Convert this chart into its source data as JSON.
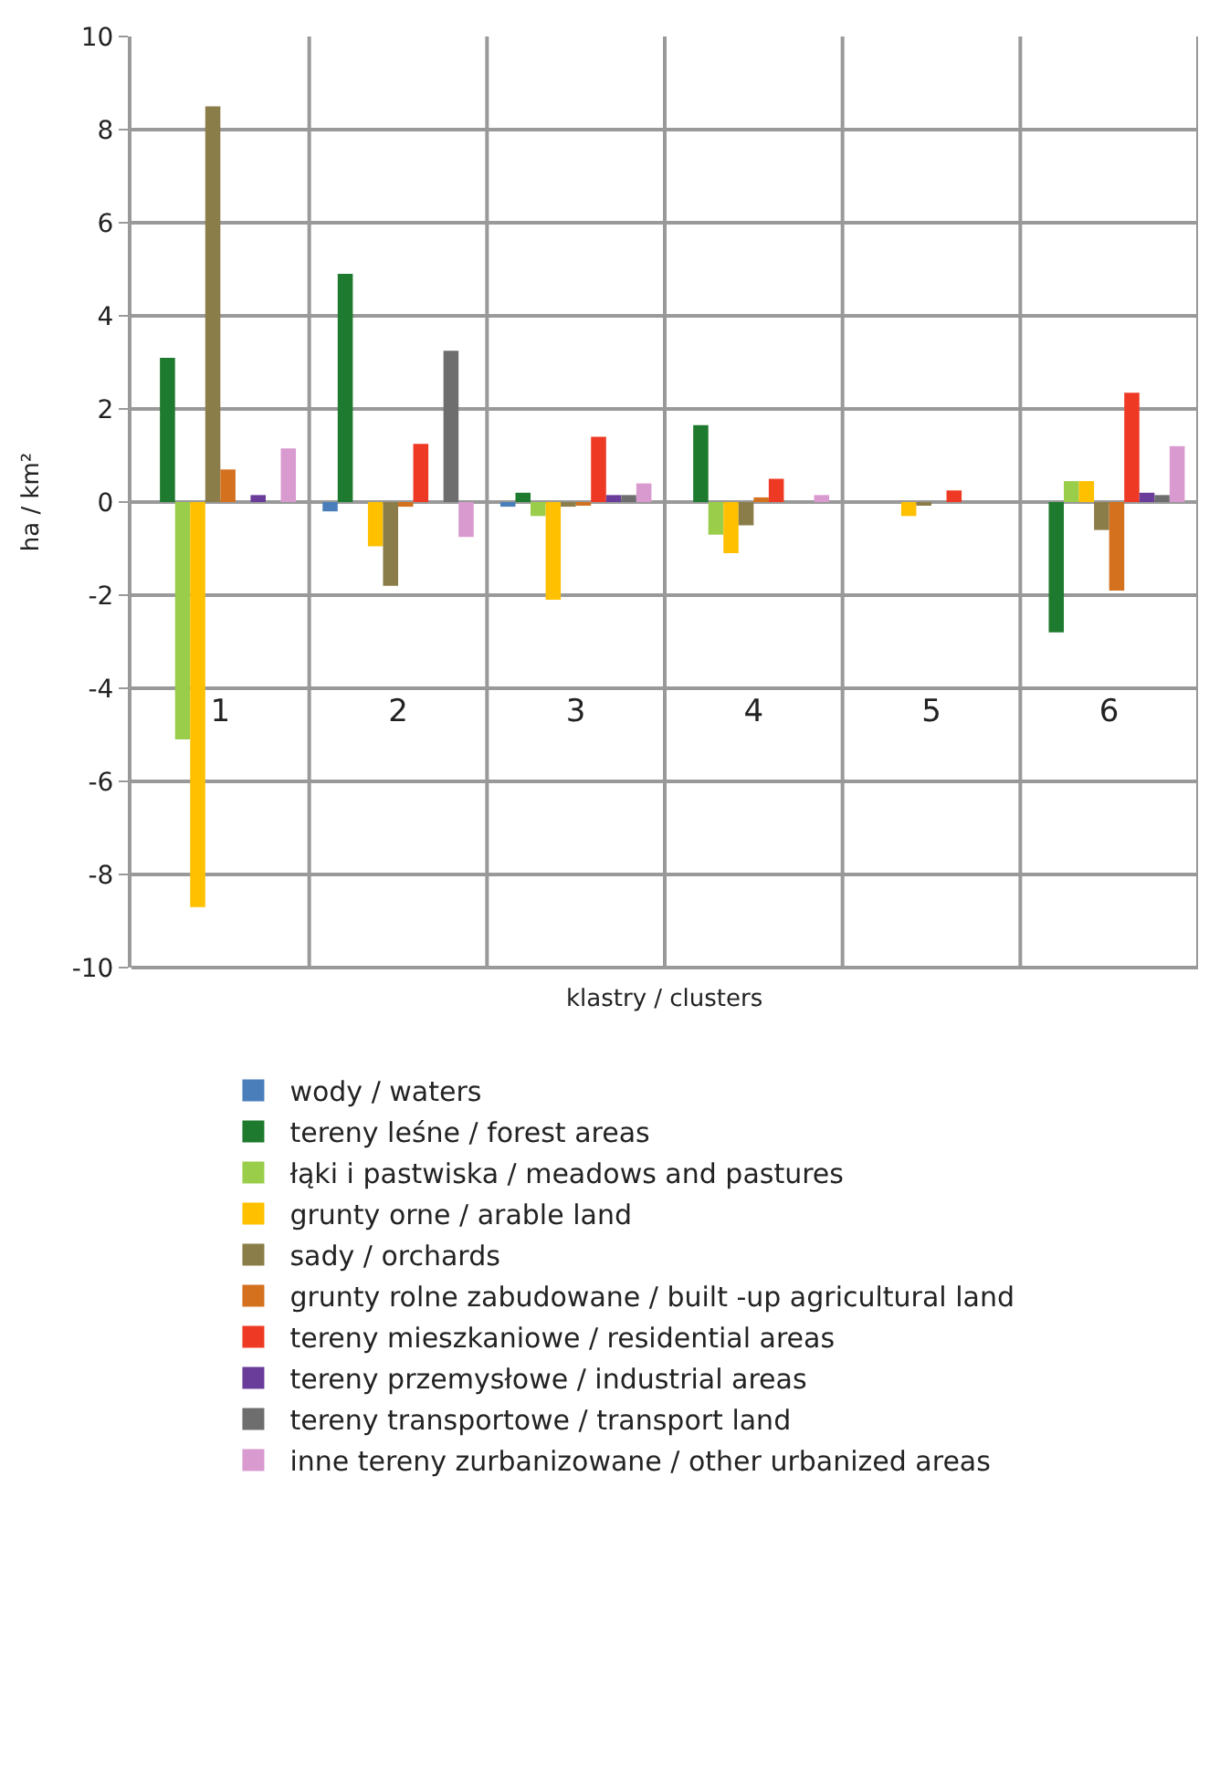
{
  "chart_data": {
    "type": "bar",
    "xlabel": "klastry / clusters",
    "ylabel": "ha / km²",
    "categories": [
      "1",
      "2",
      "3",
      "4",
      "5",
      "6"
    ],
    "ylim": [
      -10,
      10
    ],
    "yticks": [
      -10,
      -8,
      -6,
      -4,
      -2,
      0,
      2,
      4,
      6,
      8,
      10
    ],
    "grid": true,
    "legend": "bottom",
    "series": [
      {
        "name": "wody / waters",
        "color": "#4a7ebb",
        "values": [
          0,
          -0.2,
          -0.1,
          0,
          0,
          0
        ]
      },
      {
        "name": "tereny leśne / forest areas",
        "color": "#1e7a2e",
        "values": [
          3.1,
          4.9,
          0.2,
          1.65,
          0,
          -2.8
        ]
      },
      {
        "name": "łąki i pastwiska / meadows and pastures",
        "color": "#9acd4a",
        "values": [
          -5.1,
          0,
          -0.3,
          -0.7,
          0,
          0.45
        ]
      },
      {
        "name": "grunty orne / arable land",
        "color": "#ffc000",
        "values": [
          -8.7,
          -0.95,
          -2.1,
          -1.1,
          -0.3,
          0.45
        ]
      },
      {
        "name": "sady / orchards",
        "color": "#8b7d4a",
        "values": [
          8.5,
          -1.8,
          -0.1,
          -0.5,
          -0.05,
          -0.6
        ]
      },
      {
        "name": "grunty rolne zabudowane / built -up agricultural land",
        "color": "#d4711e",
        "values": [
          0.7,
          -0.1,
          -0.05,
          0.1,
          0,
          -1.9
        ]
      },
      {
        "name": "tereny mieszkaniowe / residential areas",
        "color": "#ee3a24",
        "values": [
          0,
          1.25,
          1.4,
          0.5,
          0.25,
          2.35
        ]
      },
      {
        "name": "tereny przemysłowe / industrial areas",
        "color": "#6a3d9a",
        "values": [
          0.15,
          0,
          0.15,
          0,
          0,
          0.2
        ]
      },
      {
        "name": "tereny transportowe / transport land",
        "color": "#6e6e6e",
        "values": [
          0,
          3.25,
          0.15,
          0,
          0,
          0.15
        ]
      },
      {
        "name": "inne tereny zurbanizowane / other urbanized areas",
        "color": "#d99ad0",
        "values": [
          1.15,
          -0.75,
          0.4,
          0.15,
          0,
          1.2
        ]
      }
    ]
  }
}
